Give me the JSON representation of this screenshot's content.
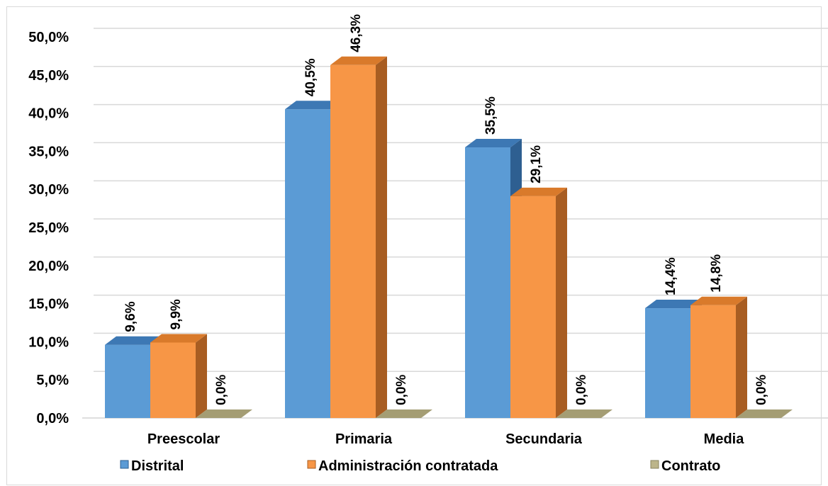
{
  "chart_data": {
    "type": "bar",
    "categories": [
      "Preescolar",
      "Primaria",
      "Secundaria",
      "Media"
    ],
    "series": [
      {
        "name": "Distrital",
        "values": [
          9.6,
          40.5,
          35.5,
          14.4
        ],
        "labels": [
          "9,6%",
          "40,5%",
          "35,5%",
          "14,4%"
        ]
      },
      {
        "name": "Administración contratada",
        "values": [
          9.9,
          46.3,
          29.1,
          14.8
        ],
        "labels": [
          "9,9%",
          "46,3%",
          "29,1%",
          "14,8%"
        ]
      },
      {
        "name": "Contrato",
        "values": [
          0.0,
          0.0,
          0.0,
          0.0
        ],
        "labels": [
          "0,0%",
          "0,0%",
          "0,0%",
          "0,0%"
        ]
      }
    ],
    "yticks": [
      "0,0%",
      "5,0%",
      "10,0%",
      "15,0%",
      "20,0%",
      "25,0%",
      "30,0%",
      "35,0%",
      "40,0%",
      "45,0%",
      "50,0%"
    ],
    "ylim": [
      0,
      50
    ],
    "grid": true,
    "legend_position": "bottom",
    "colors": {
      "Distrital": {
        "front": "#5b9bd5",
        "top": "#3d78b4",
        "side": "#2e5f91"
      },
      "Administración contratada": {
        "front": "#f79646",
        "top": "#d97a2b",
        "side": "#a85d22"
      },
      "Contrato": {
        "front": "#bcb58a",
        "top": "#a49d74",
        "side": "#8a845f"
      }
    }
  }
}
